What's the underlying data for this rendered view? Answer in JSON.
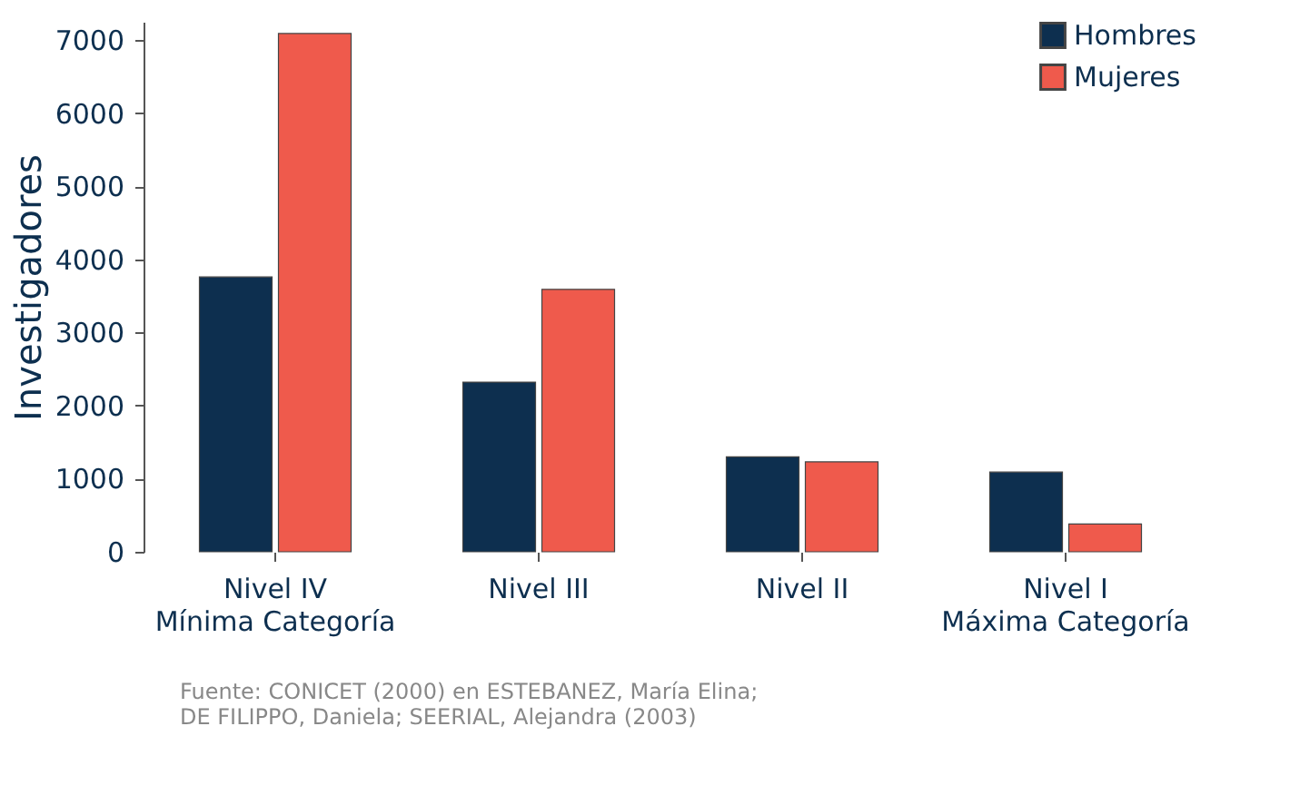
{
  "chart_data": {
    "type": "bar",
    "ylabel": "Investigadores",
    "categories": [
      "Nivel IV\nMínima Categoría",
      "Nivel III",
      "Nivel II",
      "Nivel I\nMáxima Categoría"
    ],
    "series": [
      {
        "name": "Hombres",
        "color": "#0d2f4f",
        "values": [
          3760,
          2320,
          1300,
          1090
        ]
      },
      {
        "name": "Mujeres",
        "color": "#ef5a4c",
        "values": [
          7090,
          3590,
          1230,
          380
        ]
      }
    ],
    "ylim": [
      0,
      7250
    ],
    "yticks": [
      0,
      1000,
      2000,
      3000,
      4000,
      5000,
      6000,
      7000
    ],
    "grid": false,
    "legend": "top right",
    "annotations": [
      "Fuente: CONICET (2000) en ESTEBANEZ, María Elina;\nDE FILIPPO, Daniela; SEERIAL, Alejandra (2003)"
    ]
  }
}
